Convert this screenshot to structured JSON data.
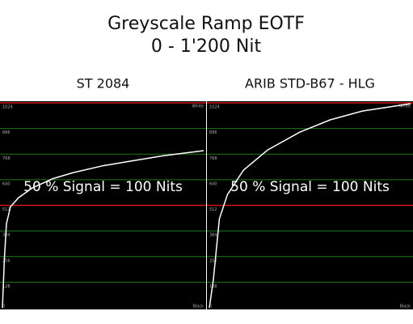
{
  "title": "Greyscale Ramp EOTF",
  "subtitle": "0 - 1'200 Nit",
  "chart_data": [
    {
      "type": "line",
      "title": "ST 2084",
      "annotation": "50 % Signal = 100 Nits",
      "top_label": "White",
      "bottom_label": "Black",
      "x": [
        0,
        1,
        2,
        4,
        8,
        15,
        25,
        35,
        50,
        65,
        80,
        100
      ],
      "values": [
        0,
        250,
        420,
        505,
        550,
        600,
        645,
        675,
        710,
        735,
        760,
        785
      ],
      "color": "#ffffff",
      "xlim": [
        0,
        100
      ],
      "ylim": [
        0,
        1024
      ],
      "yticks": [
        0,
        128,
        256,
        384,
        512,
        640,
        768,
        896,
        1024
      ],
      "grid": true,
      "grid_color": "#1e7a1e",
      "highlight_ticks": [
        512,
        1024
      ],
      "highlight_color": "#d01818"
    },
    {
      "type": "line",
      "title": "ARIB STD-B67 - HLG",
      "annotation": "50 % Signal = 100 Nits",
      "top_label": "White",
      "bottom_label": "Black",
      "x": [
        0,
        2,
        5,
        9,
        17,
        29,
        45,
        60,
        76,
        100
      ],
      "values": [
        0,
        140,
        445,
        566,
        688,
        789,
        878,
        939,
        983,
        1020
      ],
      "color": "#ffffff",
      "xlim": [
        0,
        100
      ],
      "ylim": [
        0,
        1024
      ],
      "yticks": [
        0,
        128,
        256,
        384,
        512,
        640,
        768,
        896,
        1024
      ],
      "grid": true,
      "grid_color": "#1e7a1e",
      "highlight_ticks": [
        512,
        1024
      ],
      "highlight_color": "#d01818"
    }
  ]
}
